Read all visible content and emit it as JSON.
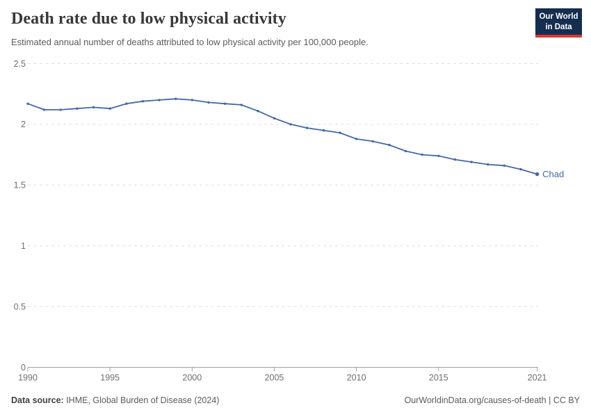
{
  "header": {
    "title": "Death rate due to low physical activity",
    "subtitle": "Estimated annual number of deaths attributed to low physical activity per 100,000 people.",
    "logo": {
      "line1": "Our World",
      "line2": "in Data",
      "bg_color": "#152d4e",
      "bar_color": "#d63b36"
    }
  },
  "chart_data": {
    "type": "line",
    "title": "Death rate due to low physical activity",
    "subtitle": "Estimated annual number of deaths attributed to low physical activity per 100,000 people.",
    "x": [
      1990,
      1991,
      1992,
      1993,
      1994,
      1995,
      1996,
      1997,
      1998,
      1999,
      2000,
      2001,
      2002,
      2003,
      2004,
      2005,
      2006,
      2007,
      2008,
      2009,
      2010,
      2011,
      2012,
      2013,
      2014,
      2015,
      2016,
      2017,
      2018,
      2019,
      2020,
      2021
    ],
    "series": [
      {
        "name": "Chad",
        "color": "#4467a5",
        "values": [
          2.17,
          2.12,
          2.12,
          2.13,
          2.14,
          2.13,
          2.17,
          2.19,
          2.2,
          2.21,
          2.2,
          2.18,
          2.17,
          2.16,
          2.11,
          2.05,
          2.0,
          1.97,
          1.95,
          1.93,
          1.88,
          1.86,
          1.83,
          1.78,
          1.75,
          1.74,
          1.71,
          1.69,
          1.67,
          1.66,
          1.63,
          1.59
        ]
      }
    ],
    "xlabel": "",
    "ylabel": "",
    "ylim": [
      0,
      2.5
    ],
    "yticks": [
      0,
      0.5,
      1,
      1.5,
      2,
      2.5
    ],
    "xticks": [
      1990,
      1995,
      2000,
      2005,
      2010,
      2015,
      2021
    ],
    "grid": "horizontal-dashed",
    "legend_position": "end-of-line-label",
    "end_label": "Chad",
    "axis_text_color": "#6e6e6e",
    "grid_color": "#dddddd",
    "axis_line_color": "#a1a1a1"
  },
  "footer": {
    "source_label": "Data source:",
    "source_text": " IHME, Global Burden of Disease (2024)",
    "link_text": "OurWorldinData.org/causes-of-death | CC BY"
  }
}
